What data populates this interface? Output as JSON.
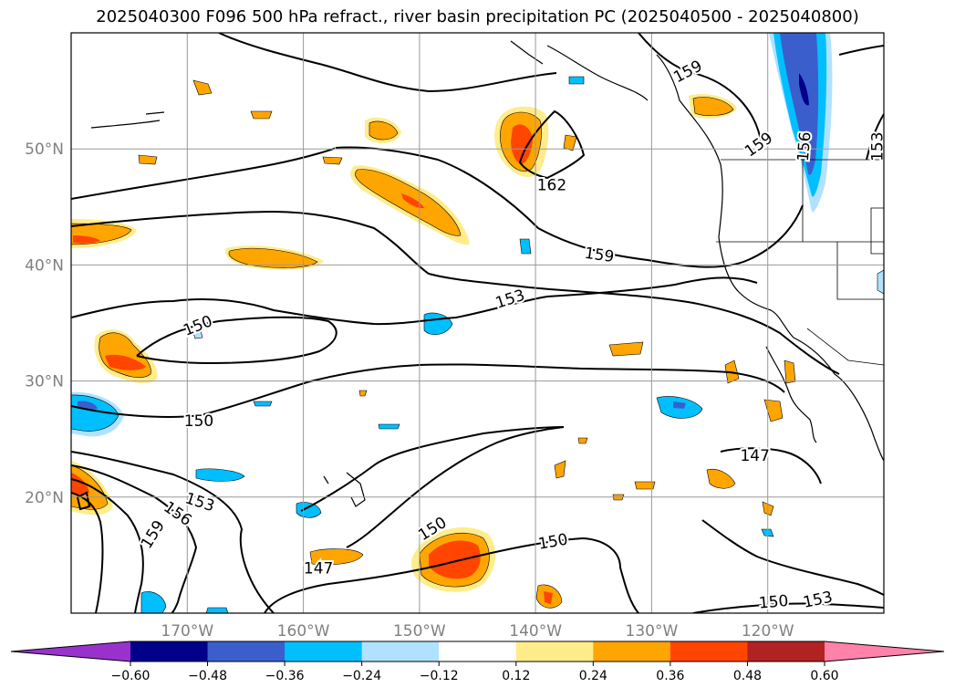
{
  "title": "2025040300 F096 500 hPa refract., river basin precipitation PC (2025040500 - 2025040800)",
  "map": {
    "lon_range": [
      -180,
      -110
    ],
    "lat_range": [
      10,
      60
    ],
    "lon_labels": [
      "170°W",
      "160°W",
      "150°W",
      "140°W",
      "130°W",
      "120°W"
    ],
    "lat_labels": [
      "50°N",
      "40°N",
      "30°N",
      "20°N"
    ],
    "contour_levels": [
      147,
      150,
      153,
      156,
      159,
      162
    ],
    "contour_labels": [
      {
        "text": "159",
        "lon": -126.9,
        "lat": 56.7,
        "rot": -28
      },
      {
        "text": "159",
        "lon": -120.8,
        "lat": 50.4,
        "rot": -35
      },
      {
        "text": "156",
        "lon": -116.9,
        "lat": 50.2,
        "rot": -85
      },
      {
        "text": "153",
        "lon": -110.6,
        "lat": 50.2,
        "rot": -90
      },
      {
        "text": "162",
        "lon": -138.6,
        "lat": 46.9,
        "rot": 0
      },
      {
        "text": "159",
        "lon": -134.5,
        "lat": 40.9,
        "rot": 8
      },
      {
        "text": "153",
        "lon": -142.2,
        "lat": 37.1,
        "rot": -18
      },
      {
        "text": "150",
        "lon": -169.1,
        "lat": 34.8,
        "rot": -22
      },
      {
        "text": "150",
        "lon": -169.0,
        "lat": 26.6,
        "rot": 0
      },
      {
        "text": "147",
        "lon": -121.1,
        "lat": 23.6,
        "rot": 0
      },
      {
        "text": "153",
        "lon": -168.9,
        "lat": 19.6,
        "rot": 18
      },
      {
        "text": "156",
        "lon": -170.8,
        "lat": 18.6,
        "rot": 35
      },
      {
        "text": "159",
        "lon": -173.0,
        "lat": 16.8,
        "rot": -58
      },
      {
        "text": "150",
        "lon": -148.9,
        "lat": 17.3,
        "rot": -32
      },
      {
        "text": "150",
        "lon": -138.5,
        "lat": 16.2,
        "rot": -10
      },
      {
        "text": "147",
        "lon": -158.7,
        "lat": 13.9,
        "rot": 0
      },
      {
        "text": "150",
        "lon": -119.5,
        "lat": 11.0,
        "rot": -5
      },
      {
        "text": "153",
        "lon": -115.7,
        "lat": 11.2,
        "rot": -12
      }
    ]
  },
  "colorbar": {
    "ticks": [
      "−0.60",
      "−0.48",
      "−0.36",
      "−0.24",
      "−0.12",
      "0.12",
      "0.24",
      "0.36",
      "0.48",
      "0.60"
    ],
    "colors": [
      "#9932cc",
      "#00008b",
      "#3a5fcd",
      "#00bfff",
      "#b0e2ff",
      "#ffffff",
      "#ffec8b",
      "#ffa500",
      "#ff4500",
      "#b22222",
      "#ff82ab"
    ]
  }
}
